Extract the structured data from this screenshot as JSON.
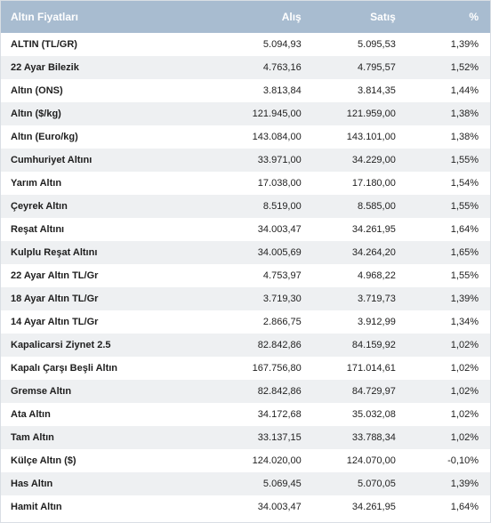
{
  "header": {
    "name": "Altın Fiyatları",
    "alis": "Alış",
    "satis": "Satış",
    "percent": "%"
  },
  "rows": [
    {
      "name": "ALTIN (TL/GR)",
      "alis": "5.094,93",
      "satis": "5.095,53",
      "percent": "1,39%"
    },
    {
      "name": "22 Ayar Bilezik",
      "alis": "4.763,16",
      "satis": "4.795,57",
      "percent": "1,52%"
    },
    {
      "name": "Altın (ONS)",
      "alis": "3.813,84",
      "satis": "3.814,35",
      "percent": "1,44%"
    },
    {
      "name": "Altın ($/kg)",
      "alis": "121.945,00",
      "satis": "121.959,00",
      "percent": "1,38%"
    },
    {
      "name": "Altın (Euro/kg)",
      "alis": "143.084,00",
      "satis": "143.101,00",
      "percent": "1,38%"
    },
    {
      "name": "Cumhuriyet Altını",
      "alis": "33.971,00",
      "satis": "34.229,00",
      "percent": "1,55%"
    },
    {
      "name": "Yarım Altın",
      "alis": "17.038,00",
      "satis": "17.180,00",
      "percent": "1,54%"
    },
    {
      "name": "Çeyrek Altın",
      "alis": "8.519,00",
      "satis": "8.585,00",
      "percent": "1,55%"
    },
    {
      "name": "Reşat Altını",
      "alis": "34.003,47",
      "satis": "34.261,95",
      "percent": "1,64%"
    },
    {
      "name": "Kulplu Reşat Altını",
      "alis": "34.005,69",
      "satis": "34.264,20",
      "percent": "1,65%"
    },
    {
      "name": "22 Ayar Altın TL/Gr",
      "alis": "4.753,97",
      "satis": "4.968,22",
      "percent": "1,55%"
    },
    {
      "name": "18 Ayar Altın TL/Gr",
      "alis": "3.719,30",
      "satis": "3.719,73",
      "percent": "1,39%"
    },
    {
      "name": "14 Ayar Altın TL/Gr",
      "alis": "2.866,75",
      "satis": "3.912,99",
      "percent": "1,34%"
    },
    {
      "name": "Kapalicarsi Ziynet 2.5",
      "alis": "82.842,86",
      "satis": "84.159,92",
      "percent": "1,02%"
    },
    {
      "name": "Kapalı Çarşı Beşli Altın",
      "alis": "167.756,80",
      "satis": "171.014,61",
      "percent": "1,02%"
    },
    {
      "name": "Gremse Altın",
      "alis": "82.842,86",
      "satis": "84.729,97",
      "percent": "1,02%"
    },
    {
      "name": "Ata Altın",
      "alis": "34.172,68",
      "satis": "35.032,08",
      "percent": "1,02%"
    },
    {
      "name": "Tam Altın",
      "alis": "33.137,15",
      "satis": "33.788,34",
      "percent": "1,02%"
    },
    {
      "name": "Külçe Altın ($)",
      "alis": "124.020,00",
      "satis": "124.070,00",
      "percent": "-0,10%"
    },
    {
      "name": "Has Altın",
      "alis": "5.069,45",
      "satis": "5.070,05",
      "percent": "1,39%"
    },
    {
      "name": "Hamit Altın",
      "alis": "34.003,47",
      "satis": "34.261,95",
      "percent": "1,64%"
    }
  ],
  "colors": {
    "header_bg": "#a8bcd0",
    "header_text": "#ffffff",
    "row_alt_bg": "#eef0f2"
  }
}
